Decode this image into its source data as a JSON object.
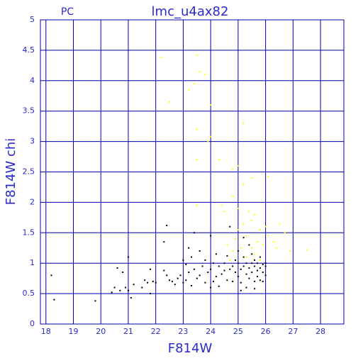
{
  "chart_data": {
    "type": "scatter",
    "title": "lmc_u4ax82",
    "subtitle": "PC",
    "x_label": "F814W",
    "y_label": "F814W chi",
    "xlim": [
      17.8,
      28.85
    ],
    "ylim": [
      0,
      5
    ],
    "xticks": [
      18,
      19,
      20,
      21,
      22,
      23,
      24,
      25,
      26,
      27,
      28
    ],
    "yticks": [
      0,
      0.5,
      1,
      1.5,
      2,
      2.5,
      3,
      3.5,
      4,
      4.5,
      5
    ],
    "grid": true,
    "grid_color": "#0000aa",
    "series": [
      {
        "color": "#000000",
        "x": [
          18.2,
          18.3,
          19.8,
          20.4,
          20.5,
          20.6,
          20.7,
          20.8,
          20.9,
          21.0,
          21.0,
          21.1,
          21.2,
          21.5,
          21.6,
          21.7,
          21.8,
          21.8,
          21.9,
          22.0,
          22.3,
          22.4,
          22.4,
          22.5,
          22.6,
          22.7,
          22.8,
          22.9,
          23.0,
          23.1,
          23.1,
          23.2,
          23.3,
          23.3,
          23.4,
          23.4,
          23.5,
          23.6,
          23.6,
          23.7,
          23.8,
          23.8,
          23.9,
          24.0,
          24.0,
          24.1,
          24.1,
          24.2,
          24.3,
          24.3,
          24.4,
          24.5,
          24.5,
          24.6,
          24.6,
          24.7,
          24.7,
          24.8,
          24.8,
          24.9,
          24.9,
          25.0,
          25.0,
          25.0,
          25.1,
          25.1,
          25.2,
          25.2,
          25.2,
          25.3,
          25.3,
          25.3,
          25.4,
          25.4,
          25.4,
          25.5,
          25.5,
          25.5,
          25.6,
          25.6,
          25.6,
          25.7,
          25.7,
          25.7,
          25.8,
          25.8,
          25.8,
          25.9,
          25.9,
          25.9,
          26.0,
          26.0,
          26.0,
          22.3,
          23.2,
          23.0,
          24.2,
          25.1,
          25.6,
          24.0
        ],
        "y": [
          0.8,
          0.4,
          0.38,
          0.52,
          0.6,
          0.92,
          0.55,
          0.85,
          0.6,
          0.55,
          1.1,
          0.43,
          0.65,
          0.6,
          0.72,
          0.68,
          0.5,
          0.9,
          0.7,
          0.68,
          0.88,
          0.8,
          1.62,
          0.72,
          0.7,
          0.65,
          0.75,
          0.8,
          0.68,
          0.72,
          0.98,
          0.85,
          1.1,
          0.63,
          1.5,
          0.9,
          0.75,
          0.8,
          1.2,
          0.95,
          0.68,
          1.05,
          0.85,
          0.9,
          1.45,
          0.7,
          1.0,
          0.78,
          0.95,
          0.62,
          0.82,
          1.0,
          0.88,
          0.72,
          1.12,
          0.9,
          1.6,
          0.95,
          0.7,
          1.05,
          0.85,
          1.0,
          0.78,
          1.2,
          0.9,
          0.68,
          0.95,
          1.1,
          1.42,
          0.82,
          1.0,
          0.6,
          0.92,
          1.3,
          0.75,
          1.0,
          0.85,
          1.15,
          0.95,
          0.7,
          1.05,
          0.88,
          1.0,
          0.78,
          0.92,
          1.1,
          0.72,
          0.98,
          0.85,
          0.7,
          0.95,
          1.0,
          0.8,
          1.35,
          1.25,
          1.05,
          1.15,
          0.55,
          0.58,
          0.6
        ]
      },
      {
        "color": "#ffff00",
        "x": [
          22.2,
          22.5,
          23.2,
          23.4,
          23.5,
          23.6,
          23.8,
          24.0,
          23.5,
          24.0,
          23.9,
          24.3,
          25.2,
          23.5,
          24.8,
          25.0,
          25.5,
          26.1,
          25.2,
          24.8,
          24.4,
          24.5,
          25.0,
          25.4,
          25.6,
          23.5,
          25.2,
          25.5,
          25.8,
          26.0,
          26.5,
          26.7,
          26.3,
          26.4,
          26.9,
          27.5,
          25.0,
          24.9,
          25.3,
          25.7,
          25.1,
          24.8,
          25.5,
          25.9,
          25.3,
          25.6,
          24.7,
          26.1,
          24.6,
          25.8
        ],
        "y": [
          4.38,
          3.65,
          3.85,
          3.95,
          4.42,
          4.15,
          4.1,
          3.6,
          3.2,
          3.08,
          3.0,
          2.7,
          3.3,
          2.7,
          2.55,
          2.6,
          2.4,
          2.42,
          2.3,
          2.1,
          1.95,
          1.85,
          1.9,
          1.85,
          1.8,
          1.95,
          1.65,
          1.7,
          1.55,
          1.6,
          1.65,
          1.5,
          1.35,
          1.25,
          1.2,
          1.22,
          1.55,
          1.4,
          1.45,
          1.35,
          1.25,
          1.2,
          1.25,
          1.3,
          1.1,
          1.15,
          1.05,
          1.45,
          1.3,
          1.05
        ]
      }
    ]
  }
}
